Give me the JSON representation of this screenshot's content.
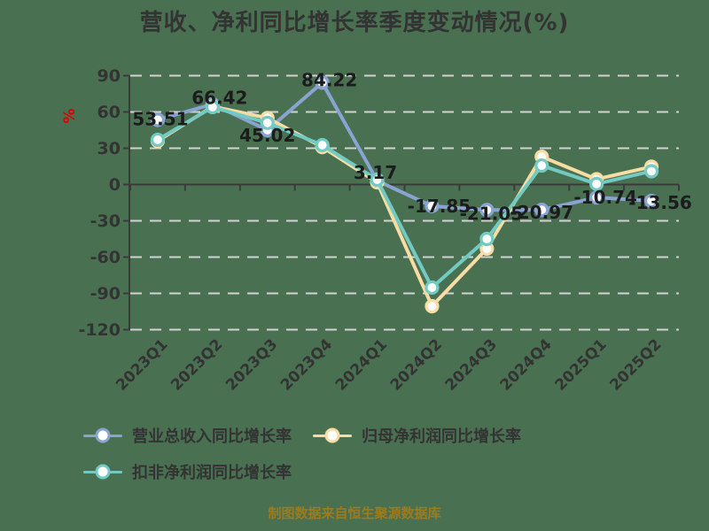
{
  "title": "营收、净利同比增长率季度变动情况(%)",
  "footer": "制图数据来自恒生聚源数据库",
  "y_axis_name": "%",
  "colors": {
    "background": "#4A7052",
    "axis": "#3A3A3A",
    "grid": "#D2D2D2",
    "tick_text": "#333333",
    "data_label": "#1C1C1C",
    "y_axis_name": "#DD0000",
    "footer": "#9C7B1D"
  },
  "legend": {
    "items": [
      {
        "label": "营业总收入同比增长率",
        "color": "#8AA4D2"
      },
      {
        "label": "归母净利润同比增长率",
        "color": "#F7DDA4"
      },
      {
        "label": "扣非净利润同比增长率",
        "color": "#73CAC2"
      }
    ]
  },
  "chart_data": {
    "type": "line",
    "title": "营收、净利同比增长率季度变动情况(%)",
    "categories": [
      "2023Q1",
      "2023Q2",
      "2023Q3",
      "2023Q4",
      "2024Q1",
      "2024Q2",
      "2024Q3",
      "2024Q4",
      "2025Q1",
      "2025Q2"
    ],
    "xlabel": "",
    "ylabel": "%",
    "ylim": [
      -120,
      90
    ],
    "y_ticks": [
      90,
      60,
      30,
      0,
      -30,
      -60,
      -90,
      -120
    ],
    "grid": "horizontal dashed",
    "legend_position": "bottom-left",
    "series": [
      {
        "name": "营业总收入同比增长率",
        "color": "#8AA4D2",
        "values": [
          53.51,
          66.42,
          45.02,
          84.22,
          3.17,
          -17.85,
          -21.05,
          -20.97,
          -10.74,
          -13.56
        ],
        "labels": [
          "53.51",
          "66.42",
          "45.02",
          "84.22",
          "3.17",
          "-17.85",
          "-21.05",
          "-20.97",
          "-10.74",
          "-13.56"
        ],
        "label_offsets": [
          [
            3,
            -1
          ],
          [
            8,
            -7
          ],
          [
            0,
            6
          ],
          [
            8,
            -3
          ],
          [
            -2,
            -9
          ],
          [
            8,
            0
          ],
          [
            5,
            4
          ],
          [
            0,
            3
          ],
          [
            10,
            0
          ],
          [
            10,
            2
          ]
        ]
      },
      {
        "name": "归母净利润同比增长率",
        "color": "#F7DDA4",
        "values": [
          36,
          64.5,
          55,
          31,
          1.8,
          -100.6,
          -53,
          23,
          4.4,
          14.7
        ]
      },
      {
        "name": "扣非净利润同比增长率",
        "color": "#73CAC2",
        "values": [
          37,
          64,
          51,
          32.6,
          4,
          -85.2,
          -45,
          15.7,
          0.5,
          11
        ]
      }
    ]
  }
}
